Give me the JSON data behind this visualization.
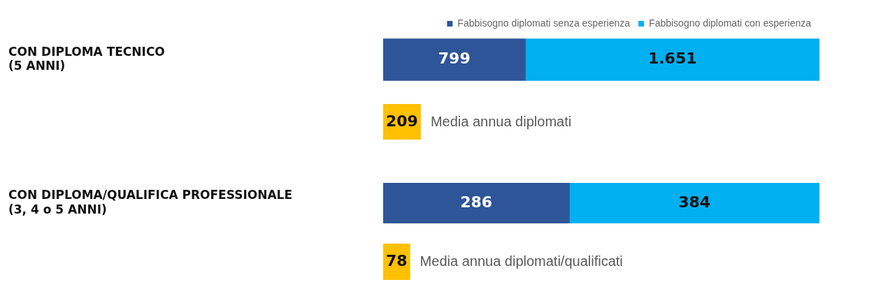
{
  "chart_data": [
    {
      "type": "bar",
      "orientation": "horizontal",
      "stacked": true,
      "legend": "top right",
      "xlim": [
        0,
        2450
      ],
      "categories": [
        "CON DIPLOMA TECNICO\n(5 ANNI)"
      ],
      "series": [
        {
          "name": "Fabbisogno diplomati senza esperienza",
          "color": "#2e5597",
          "values": [
            799
          ],
          "value_labels": [
            "799"
          ]
        },
        {
          "name": "Fabbisogno diplomati con esperienza",
          "color": "#00b0f0",
          "values": [
            1651
          ],
          "value_labels": [
            "1.651"
          ]
        }
      ],
      "annotations": [
        "209",
        "Media annua diplomati"
      ]
    },
    {
      "type": "bar",
      "orientation": "horizontal",
      "stacked": true,
      "xlim": [
        0,
        670
      ],
      "categories": [
        "CON DIPLOMA/QUALIFICA PROFESSIONALE\n(3, 4 o 5 ANNI)"
      ],
      "series": [
        {
          "color": "#2e5597",
          "values": [
            286
          ],
          "value_labels": [
            "286"
          ]
        },
        {
          "color": "#00b0f0",
          "values": [
            384
          ],
          "value_labels": [
            "384"
          ]
        }
      ],
      "annotations": [
        "78",
        "Media annua diplomati/qualificati"
      ]
    }
  ]
}
